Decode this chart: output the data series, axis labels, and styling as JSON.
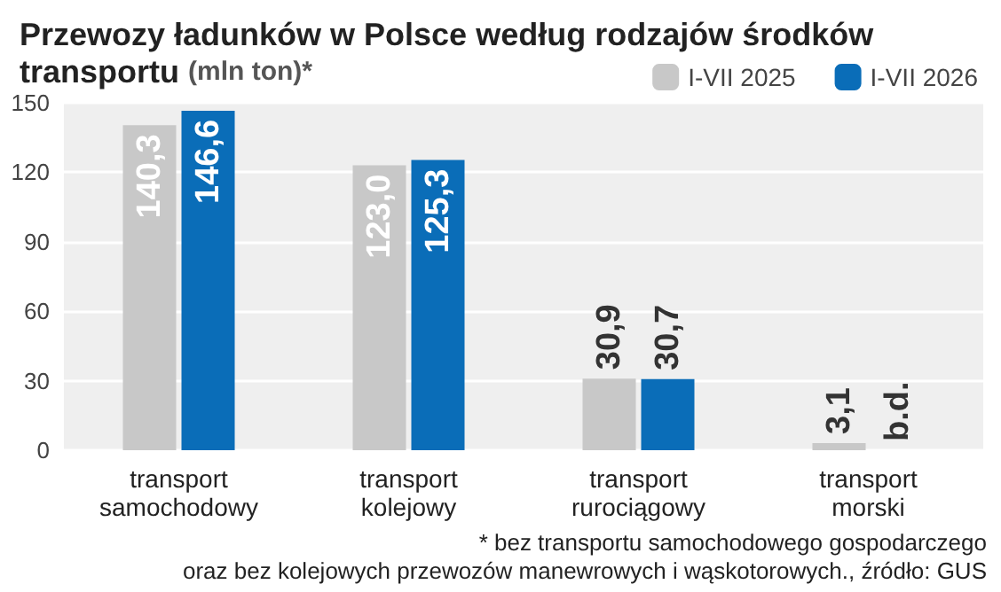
{
  "chart_data": {
    "type": "bar",
    "title": "Przewozy ładunków w Polsce według rodzajów środków transportu",
    "subtitle": "(mln ton)*",
    "categories": [
      "transport\nsamochodowy",
      "transport\nkolejowy",
      "transport\nrurociągowy",
      "transport\nmorski"
    ],
    "series": [
      {
        "name": "I-VII 2025",
        "color": "#c8c8c8",
        "values": [
          140.3,
          123.0,
          30.9,
          3.1
        ],
        "value_labels": [
          "140,3",
          "123,0",
          "30,9",
          "3,1"
        ]
      },
      {
        "name": "I-VII 2026",
        "color": "#0a6db8",
        "values": [
          146.6,
          125.3,
          30.7,
          null
        ],
        "value_labels": [
          "146,6",
          "125,3",
          "30,7",
          "b.d."
        ]
      }
    ],
    "ylim": [
      0,
      150
    ],
    "yticks": [
      0,
      30,
      60,
      90,
      120,
      150
    ],
    "grid": "y",
    "legend": "top right",
    "annotations": [
      "* bez transportu samochodowego gospodarczego\noraz bez kolejowych przewozów manewrowych i wąskotorowych., źródło: GUS"
    ]
  }
}
